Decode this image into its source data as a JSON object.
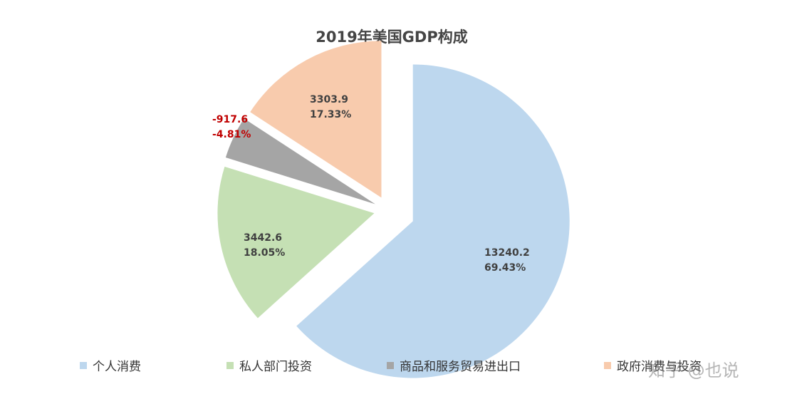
{
  "chart_data": {
    "type": "pie",
    "title": "2019年美国GDP构成",
    "categories": [
      "个人消费",
      "私人部门投资",
      "商品和服务贸易进出口",
      "政府消费与投资"
    ],
    "values": [
      13240.2,
      3442.6,
      -917.6,
      3303.9
    ],
    "percent_labels": [
      "69.43%",
      "18.05%",
      "-4.81%",
      "17.33%"
    ],
    "value_labels": [
      "13240.2",
      "3442.6",
      "-917.6",
      "3303.9"
    ],
    "colors": [
      "#bdd7ee",
      "#c5e0b4",
      "#a5a5a5",
      "#f8cbad"
    ],
    "label_colors": [
      "#404040",
      "#404040",
      "#c00000",
      "#404040"
    ],
    "legend_position": "bottom",
    "exploded": true
  },
  "watermark": "知乎 @也说"
}
